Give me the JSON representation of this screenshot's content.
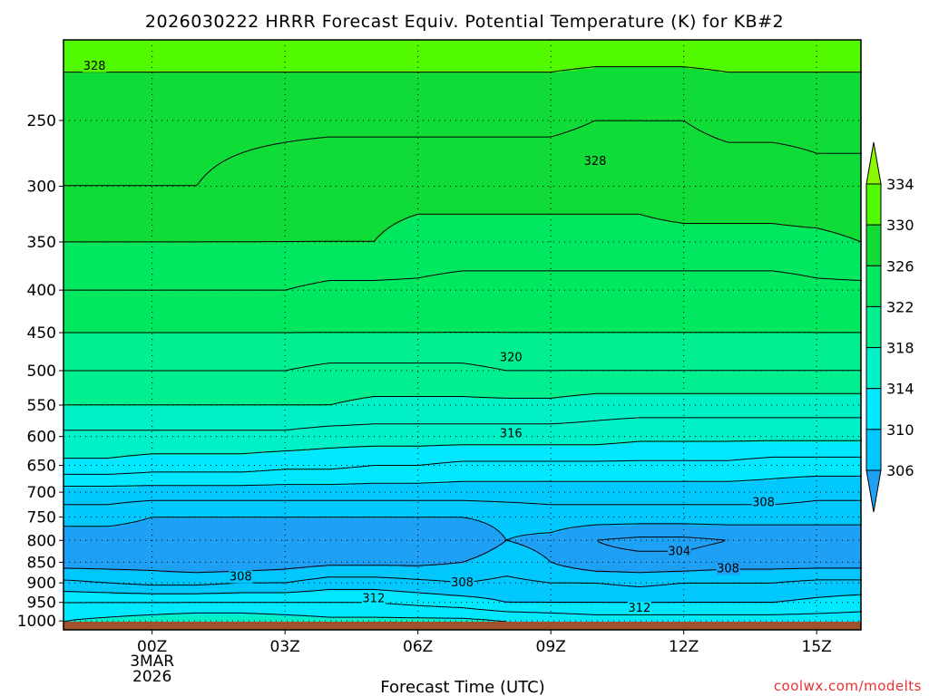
{
  "chart_data": {
    "type": "contour",
    "title": "2026030222 HRRR Forecast Equiv. Potential Temperature (K) for KB#2",
    "xlabel": "Forecast Time (UTC)",
    "ylabel": "",
    "y_axis": {
      "ticks": [
        250,
        300,
        350,
        400,
        450,
        500,
        550,
        600,
        650,
        700,
        750,
        800,
        850,
        900,
        950,
        1000
      ],
      "tick_labels": [
        "250",
        "300",
        "350",
        "400",
        "450",
        "500",
        "550",
        "600",
        "650",
        "700",
        "750",
        "800",
        "850",
        "900",
        "950",
        "1000"
      ],
      "range": [
        200,
        1025
      ],
      "scale": "log",
      "inverted": true
    },
    "x_axis": {
      "ticks": [
        0,
        3,
        6,
        9,
        12,
        15
      ],
      "tick_labels": [
        "00Z",
        "03Z",
        "06Z",
        "09Z",
        "12Z",
        "15Z"
      ],
      "date_labels": [
        "3MAR",
        "2026"
      ],
      "range": [
        -2,
        16
      ]
    },
    "grid": "dotted",
    "colorbar": {
      "levels": [
        306,
        310,
        314,
        318,
        322,
        326,
        330,
        334
      ],
      "labels": [
        "306",
        "310",
        "314",
        "318",
        "322",
        "326",
        "330",
        "334"
      ],
      "colors": [
        "#1ea0f5",
        "#00c8ff",
        "#00e8ff",
        "#00f0c8",
        "#00f090",
        "#00e860",
        "#10dc38",
        "#52fa00",
        "#8cf800"
      ],
      "extend": "both"
    },
    "fields": {
      "x": [
        -2,
        -1,
        0,
        1,
        2,
        3,
        4,
        5,
        6,
        7,
        8,
        9,
        10,
        11,
        12,
        13,
        14,
        15,
        16
      ],
      "pressure": [
        1000,
        950,
        900,
        850,
        800,
        750,
        700,
        650,
        600,
        550,
        500,
        450,
        400,
        350,
        300,
        250,
        200
      ],
      "theta_e": [
        [
          314,
          314.5,
          315,
          315.5,
          315.5,
          315,
          314.5,
          314.5,
          314.5,
          314.5,
          314,
          313.5,
          313,
          313,
          313,
          313,
          313,
          313,
          313
        ],
        [
          312,
          312,
          312,
          312,
          312,
          312,
          312,
          312,
          311.5,
          311,
          310,
          310,
          310,
          310,
          310,
          310,
          310,
          310.5,
          311
        ],
        [
          308.5,
          308,
          307.5,
          307.5,
          308,
          308,
          309,
          309,
          308.5,
          308,
          308.5,
          308,
          308,
          307.5,
          308,
          308,
          308,
          308.5,
          308.5
        ],
        [
          305,
          305,
          305,
          304.5,
          304.5,
          305,
          305.5,
          305.5,
          305.5,
          306,
          307,
          306,
          304.5,
          304.5,
          304.5,
          305,
          305,
          305,
          305
        ],
        [
          304.5,
          304.5,
          304.5,
          304.5,
          304.5,
          304.5,
          304.5,
          304.5,
          304.5,
          304.5,
          306,
          305.5,
          304,
          303.5,
          303.5,
          304,
          304,
          304,
          304
        ],
        [
          307,
          307,
          306,
          306,
          306,
          306,
          306,
          306,
          306,
          306,
          306.5,
          307,
          307,
          307,
          307,
          307,
          307,
          307,
          307
        ],
        [
          309,
          309,
          309,
          309,
          309,
          309,
          309,
          309,
          309,
          309,
          309,
          309,
          309,
          309,
          309,
          309,
          309,
          308.5,
          308.5
        ],
        [
          313.5,
          313.5,
          313,
          313,
          313,
          312.5,
          312.5,
          312,
          312,
          311.5,
          311.5,
          311.5,
          311.5,
          311.5,
          311.5,
          311.5,
          311,
          311,
          311
        ],
        [
          315.5,
          315.5,
          315.5,
          315.5,
          315.5,
          315.5,
          315,
          315,
          315,
          315,
          315,
          315,
          315,
          314.5,
          314.5,
          314.5,
          314.5,
          314.5,
          314.5
        ],
        [
          318,
          318,
          318,
          318,
          318,
          318,
          318,
          317.5,
          317.5,
          317.5,
          317.5,
          317.5,
          317,
          317,
          317,
          317,
          317,
          317,
          317
        ],
        [
          320,
          320,
          320,
          320,
          320,
          320,
          319.5,
          319.5,
          319.5,
          319.5,
          320,
          320,
          320,
          320,
          320,
          320,
          320,
          320,
          320
        ],
        [
          322,
          322,
          322,
          322,
          322,
          322,
          322,
          322,
          322,
          322,
          322,
          322,
          322,
          322,
          322,
          322,
          322,
          322,
          322
        ],
        [
          324,
          324,
          324,
          324,
          324,
          324,
          323.5,
          323.5,
          323.5,
          323,
          323,
          323,
          323,
          323,
          323,
          323,
          323,
          323.5,
          323.5
        ],
        [
          326,
          326,
          326,
          326,
          326,
          326,
          326,
          326,
          325.5,
          325.5,
          325.5,
          325.5,
          325.5,
          325.5,
          325.5,
          325.5,
          325.5,
          325.5,
          326
        ],
        [
          328,
          328,
          328,
          328,
          327.5,
          327,
          326.5,
          326.5,
          326.5,
          326.5,
          326.5,
          326.5,
          326.5,
          326.5,
          327,
          327,
          327,
          327.5,
          327.5
        ],
        [
          328.5,
          328.5,
          328.5,
          328.5,
          328.5,
          328.5,
          328.5,
          328.5,
          328.5,
          328.5,
          328.5,
          328.5,
          328,
          328,
          328,
          328.5,
          328.5,
          328.5,
          328.5
        ],
        [
          331,
          331,
          331,
          331,
          331,
          331,
          331,
          331,
          331,
          331,
          331,
          331,
          331,
          331,
          331,
          331,
          331,
          331,
          331
        ]
      ]
    },
    "contour_labels": [
      {
        "text": "328",
        "x": -1.3,
        "p": 215
      },
      {
        "text": "328",
        "x": 10,
        "p": 280
      },
      {
        "text": "320",
        "x": 8.1,
        "p": 482
      },
      {
        "text": "316",
        "x": 8.1,
        "p": 595
      },
      {
        "text": "308",
        "x": 13.8,
        "p": 720
      },
      {
        "text": "304",
        "x": 11.9,
        "p": 825
      },
      {
        "text": "308",
        "x": 13.0,
        "p": 865
      },
      {
        "text": "308",
        "x": 2.0,
        "p": 885
      },
      {
        "text": "308",
        "x": 7.0,
        "p": 900
      },
      {
        "text": "312",
        "x": 5.0,
        "p": 940
      },
      {
        "text": "312",
        "x": 11.0,
        "p": 965
      }
    ],
    "ground": {
      "color": "#a0522d"
    },
    "credit": "coolwx.com/modelts"
  }
}
